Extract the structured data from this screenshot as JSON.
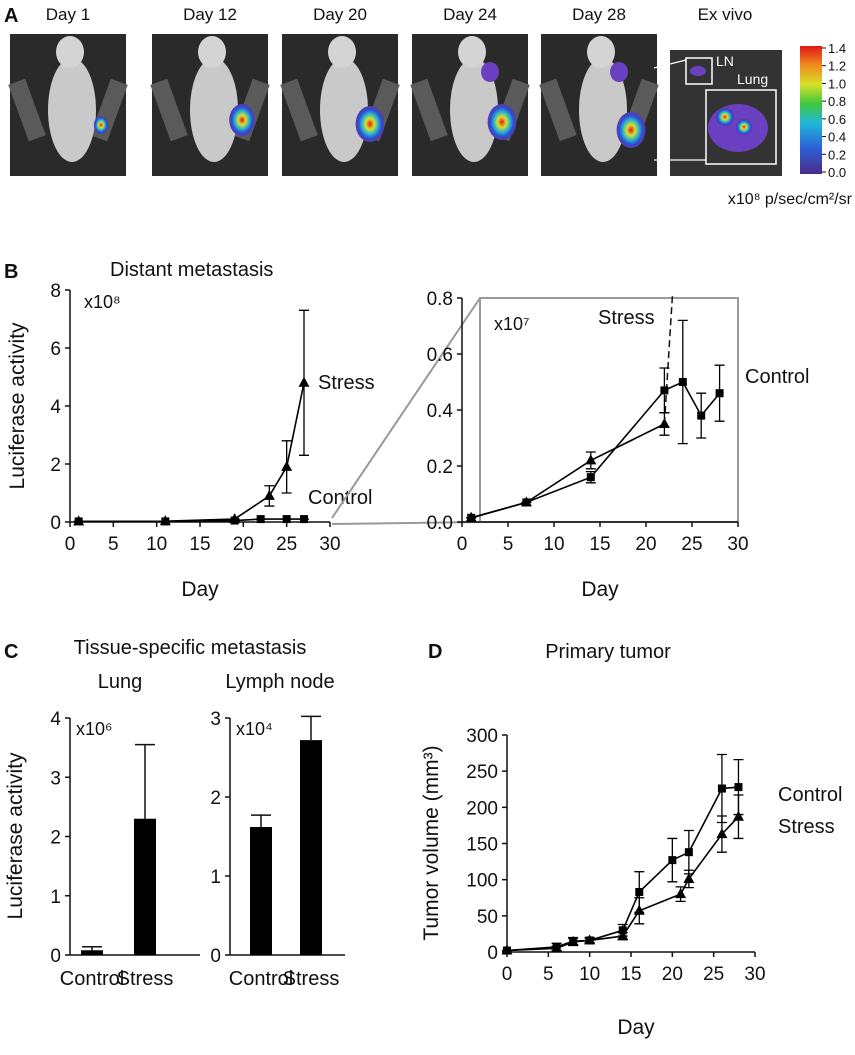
{
  "panel_labels": [
    "A",
    "B",
    "C",
    "D"
  ],
  "panel_a": {
    "images": [
      "Day 1",
      "Day 12",
      "Day 20",
      "Day 24",
      "Day 28",
      "Ex vivo"
    ],
    "insets": [
      "LN",
      "Lung"
    ],
    "colorbar": {
      "ticks": [
        {
          "value": 0,
          "label": "0.0"
        },
        {
          "value": 0.2,
          "label": "0.2"
        },
        {
          "value": 0.4,
          "label": "0.4"
        },
        {
          "value": 0.6,
          "label": "0.6"
        },
        {
          "value": 0.8,
          "label": "0.8"
        },
        {
          "value": 1.0,
          "label": "1.0"
        },
        {
          "value": 1.2,
          "label": "1.2"
        },
        {
          "value": 1.4,
          "label": "1.4"
        }
      ],
      "unit": "x10⁸ p/sec/cm²/sr"
    }
  },
  "chart_data": [
    {
      "type": "line",
      "title": "Distant metastasis",
      "y_label": "Luciferase activity",
      "x_label": "Day",
      "multiplier": "x10⁸",
      "xlim": [
        0,
        30
      ],
      "xticks": [
        0,
        5,
        10,
        15,
        20,
        25,
        30
      ],
      "ylim": [
        0,
        8
      ],
      "yticks": [
        0,
        2,
        4,
        6,
        8
      ],
      "series": [
        {
          "name": "Stress",
          "color": "#000000",
          "marker": "triangle",
          "x": [
            1,
            11,
            19,
            23,
            25,
            27
          ],
          "values": [
            0.02,
            0.03,
            0.1,
            0.9,
            1.9,
            4.8
          ],
          "errors": [
            0,
            0,
            0,
            0.35,
            0.9,
            2.5
          ]
        },
        {
          "name": "Control",
          "color": "#000000",
          "marker": "square",
          "x": [
            1,
            11,
            19,
            22,
            25,
            27
          ],
          "values": [
            0.02,
            0.02,
            0.05,
            0.1,
            0.1,
            0.1
          ],
          "errors": [
            0,
            0,
            0,
            0,
            0,
            0
          ]
        }
      ]
    },
    {
      "type": "line",
      "x_label": "Day",
      "multiplier": "x10⁷",
      "xlim": [
        0,
        30
      ],
      "xticks": [
        0,
        5,
        10,
        15,
        20,
        25,
        30
      ],
      "ylim": [
        0,
        0.8
      ],
      "yticks": [
        {
          "value": 0,
          "label": "0.0"
        },
        {
          "value": 0.2,
          "label": "0.2"
        },
        {
          "value": 0.4,
          "label": "0.4"
        },
        {
          "value": 0.6,
          "label": "0.6"
        },
        {
          "value": 0.8,
          "label": "0.8"
        }
      ],
      "series": [
        {
          "name": "Stress",
          "color": "#000000",
          "marker": "triangle",
          "x": [
            1,
            7,
            14,
            22
          ],
          "values": [
            0.015,
            0.07,
            0.22,
            0.35
          ],
          "errors": [
            0,
            0,
            0.03,
            0.04
          ]
        },
        {
          "name": "Control",
          "color": "#000000",
          "marker": "square",
          "x": [
            1,
            7,
            14,
            22,
            24,
            26,
            28
          ],
          "values": [
            0.015,
            0.07,
            0.16,
            0.47,
            0.5,
            0.38,
            0.46
          ],
          "errors": [
            0,
            0,
            0.02,
            0.08,
            0.22,
            0.08,
            0.1
          ]
        }
      ]
    },
    {
      "type": "bar",
      "title": "Tissue-specific metastasis",
      "subtitle": "Lung",
      "y_label": "Luciferase activity",
      "multiplier": "x10⁶",
      "categories": [
        "Control",
        "Stress"
      ],
      "values": [
        0.08,
        2.3
      ],
      "errors": [
        0.06,
        1.25
      ],
      "color": "#000000",
      "ylim": [
        0,
        4
      ],
      "yticks": [
        0,
        1,
        2,
        3,
        4
      ]
    },
    {
      "type": "bar",
      "subtitle": "Lymph node",
      "multiplier": "x10⁴",
      "categories": [
        "Control",
        "Stress"
      ],
      "values": [
        1.62,
        2.72
      ],
      "errors": [
        0.15,
        0.3
      ],
      "color": "#000000",
      "ylim": [
        0,
        3
      ],
      "yticks": [
        0,
        1,
        2,
        3
      ]
    },
    {
      "type": "line",
      "title": "Primary tumor",
      "y_label": "Tumor volume (mm³)",
      "x_label": "Day",
      "xlim": [
        0,
        30
      ],
      "xticks": [
        0,
        5,
        10,
        15,
        20,
        25,
        30
      ],
      "ylim": [
        0,
        300
      ],
      "yticks": [
        0,
        50,
        100,
        150,
        200,
        250,
        300
      ],
      "series": [
        {
          "name": "Control",
          "color": "#000000",
          "marker": "square",
          "x": [
            0,
            6,
            8,
            10,
            14,
            16,
            20,
            22,
            26,
            28
          ],
          "values": [
            2,
            7,
            15,
            16,
            30,
            83,
            127,
            138,
            226,
            228
          ],
          "errors": [
            0,
            5,
            5,
            4,
            8,
            28,
            30,
            30,
            47,
            38
          ]
        },
        {
          "name": "Stress",
          "color": "#000000",
          "marker": "triangle",
          "x": [
            0,
            6,
            8,
            10,
            14,
            16,
            21,
            22,
            26,
            28
          ],
          "values": [
            2,
            5,
            14,
            16,
            22,
            57,
            80,
            101,
            163,
            187
          ],
          "errors": [
            0,
            3,
            5,
            3,
            5,
            18,
            10,
            12,
            25,
            30
          ]
        }
      ]
    }
  ]
}
